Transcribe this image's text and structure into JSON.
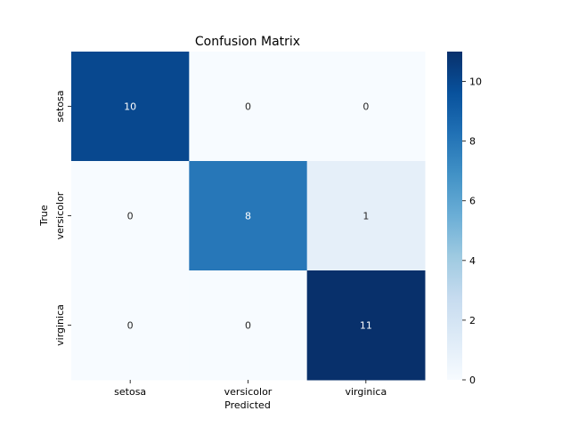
{
  "chart_data": {
    "type": "heatmap",
    "title": "Confusion Matrix",
    "xlabel": "Predicted",
    "ylabel": "True",
    "x_categories": [
      "setosa",
      "versicolor",
      "virginica"
    ],
    "y_categories": [
      "setosa",
      "versicolor",
      "virginica"
    ],
    "matrix": [
      [
        10,
        0,
        0
      ],
      [
        0,
        8,
        1
      ],
      [
        0,
        0,
        11
      ]
    ],
    "colormap": "Blues",
    "colorbar": {
      "min": 0,
      "max": 11,
      "ticks": [
        0,
        2,
        4,
        6,
        8,
        10
      ]
    },
    "annotations": true,
    "grid": false
  }
}
